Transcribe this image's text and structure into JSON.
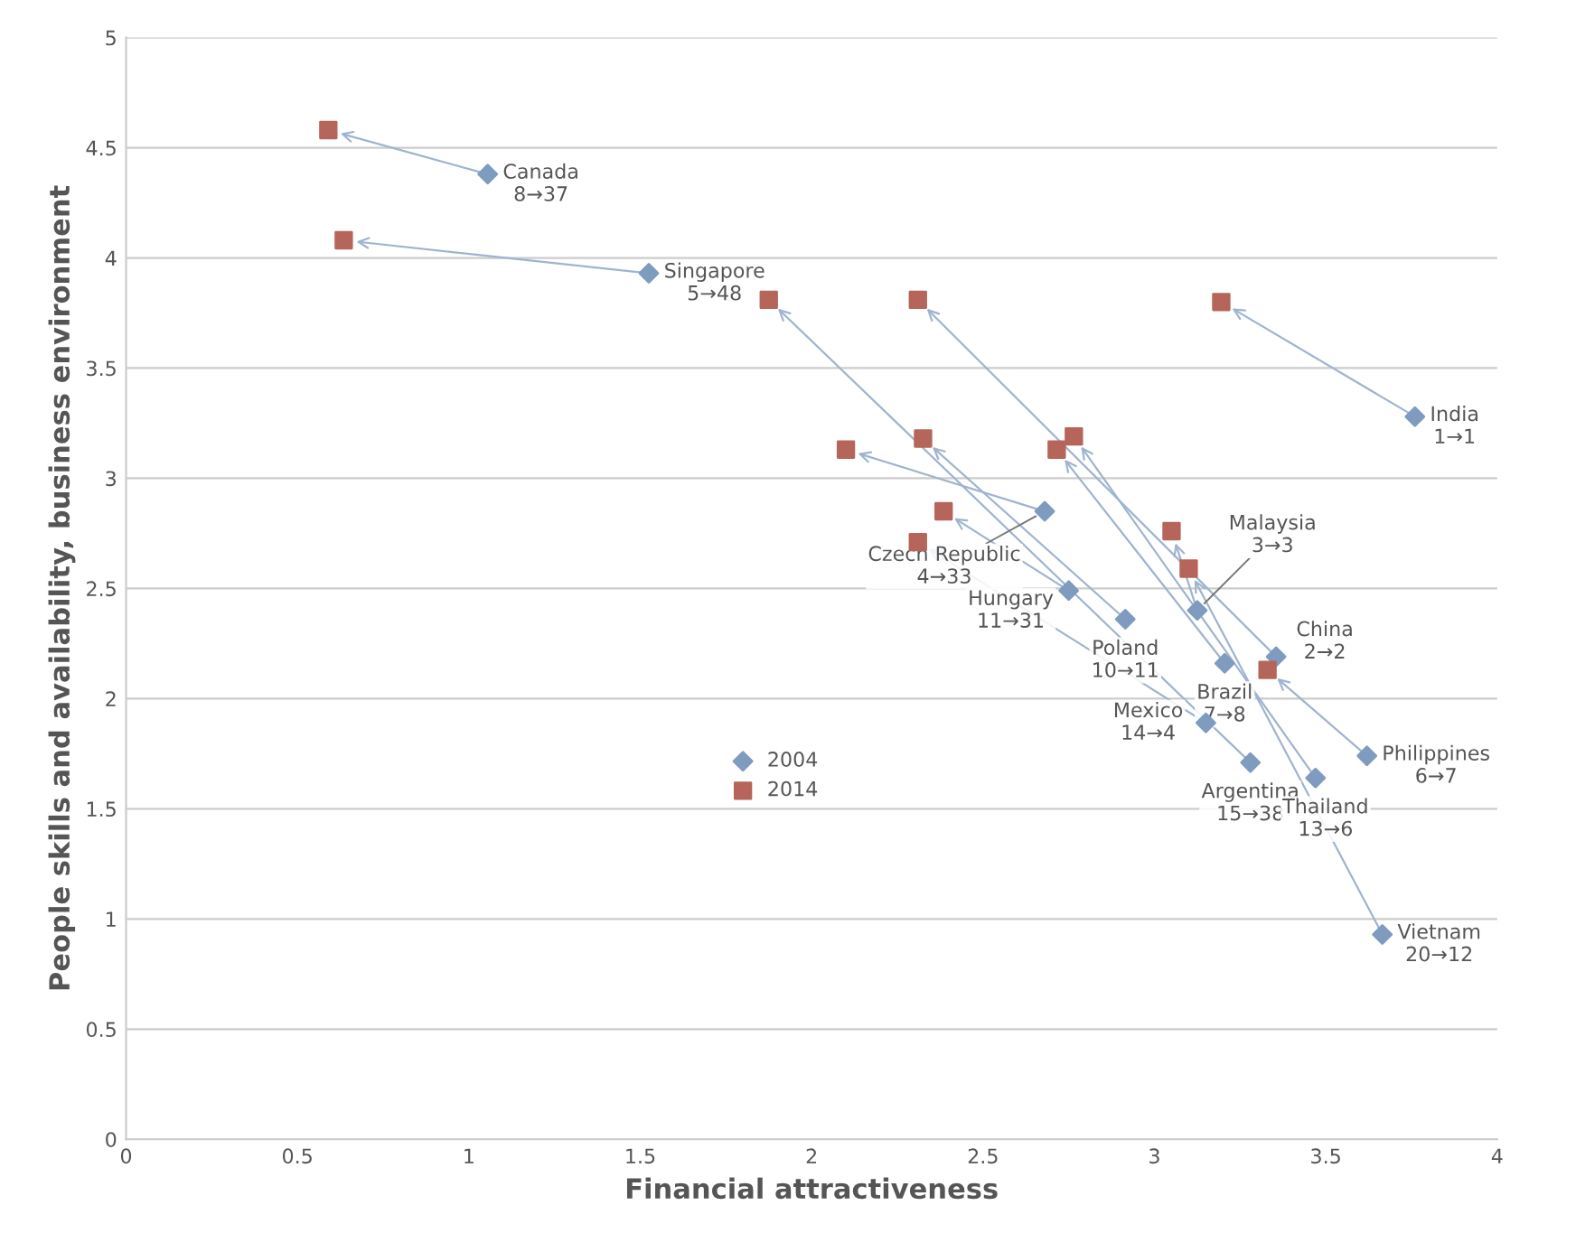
{
  "chart_data": {
    "type": "scatter",
    "xlabel": "Financial attractiveness",
    "ylabel": "People skills and availability, business environment",
    "xlim": [
      0,
      4
    ],
    "xticks": [
      0,
      0.5,
      1,
      1.5,
      2,
      2.5,
      3,
      3.5,
      4
    ],
    "ylim": [
      0,
      5
    ],
    "yticks": [
      0,
      0.5,
      1,
      1.5,
      2,
      2.5,
      3,
      3.5,
      4,
      4.5,
      5
    ],
    "grid": "y",
    "legend": "center",
    "series": [
      {
        "name": "2004",
        "color": "#7f9bbf",
        "marker": "diamond",
        "x": [
          1.055,
          1.525,
          3.76,
          2.68,
          2.75,
          2.915,
          3.15,
          3.28,
          3.47,
          3.62,
          3.125,
          3.355,
          3.665,
          3.205
        ],
        "values": [
          4.38,
          3.93,
          3.28,
          2.85,
          2.49,
          2.36,
          1.89,
          1.71,
          1.64,
          1.74,
          2.4,
          2.19,
          0.93,
          2.16
        ]
      },
      {
        "name": "2014",
        "color": "#b5655a",
        "marker": "square",
        "x": [
          0.59,
          0.635,
          3.195,
          2.1,
          2.385,
          2.325,
          2.31,
          1.875,
          2.765,
          3.33,
          3.05,
          2.31,
          3.1,
          2.715
        ],
        "values": [
          4.58,
          4.08,
          3.8,
          3.13,
          2.85,
          3.18,
          2.71,
          3.81,
          3.19,
          2.13,
          2.76,
          3.81,
          2.59,
          3.13
        ]
      }
    ],
    "annotations": [
      {
        "text": "Canada\n8→37",
        "x": 1.055,
        "y": 4.38
      },
      {
        "text": "Singapore\n5→48",
        "x": 1.525,
        "y": 3.93
      },
      {
        "text": "India\n1→1",
        "x": 3.76,
        "y": 3.28
      },
      {
        "text": "Czech Republic\n4→33",
        "x": 2.68,
        "y": 2.85
      },
      {
        "text": "Hungary\n11→31",
        "x": 2.75,
        "y": 2.49
      },
      {
        "text": "Poland\n10→11",
        "x": 2.915,
        "y": 2.36
      },
      {
        "text": "Mexico\n14→4",
        "x": 3.15,
        "y": 1.89
      },
      {
        "text": "Argentina\n15→38",
        "x": 3.28,
        "y": 1.71
      },
      {
        "text": "Thailand\n13→6",
        "x": 3.47,
        "y": 1.64
      },
      {
        "text": "Philippines\n6→7",
        "x": 3.62,
        "y": 1.74
      },
      {
        "text": "Malaysia\n3→3",
        "x": 3.125,
        "y": 2.4
      },
      {
        "text": "China\n2→2",
        "x": 3.355,
        "y": 2.19
      },
      {
        "text": "Vietnam\n20→12",
        "x": 3.665,
        "y": 0.93
      },
      {
        "text": "Brazil\n7→8",
        "x": 3.205,
        "y": 2.16
      }
    ]
  }
}
